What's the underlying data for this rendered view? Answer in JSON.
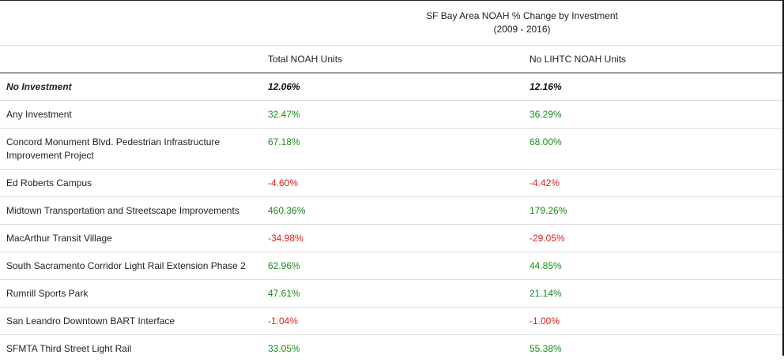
{
  "title_line1": "SF Bay Area NOAH % Change by Investment",
  "title_line2": "(2009 - 2016)",
  "columns": [
    "",
    "Total NOAH Units",
    "No LIHTC NOAH Units"
  ],
  "rows": [
    {
      "name": "No Investment",
      "total": "12.06%",
      "no_lihtc": "12.16%"
    },
    {
      "name": "Any Investment",
      "total": "32.47%",
      "no_lihtc": "36.29%"
    },
    {
      "name": "Concord Monument Blvd. Pedestrian Infrastructure Improvement Project",
      "total": "67.18%",
      "no_lihtc": "68.00%"
    },
    {
      "name": "Ed Roberts Campus",
      "total": "-4.60%",
      "no_lihtc": "-4.42%"
    },
    {
      "name": "Midtown Transportation and Streetscape Improvements",
      "total": "460.36%",
      "no_lihtc": "179.26%"
    },
    {
      "name": "MacArthur Transit Village",
      "total": "-34.98%",
      "no_lihtc": "-29.05%"
    },
    {
      "name": "South Sacramento Corridor Light Rail Extension Phase 2",
      "total": "62.96%",
      "no_lihtc": "44.85%"
    },
    {
      "name": "Rumrill Sports Park",
      "total": "47.61%",
      "no_lihtc": "21.14%"
    },
    {
      "name": "San Leandro Downtown BART Interface",
      "total": "-1.04%",
      "no_lihtc": "-1.00%"
    },
    {
      "name": "SFMTA Third Street Light Rail",
      "total": "33.05%",
      "no_lihtc": "55.38%"
    }
  ],
  "colors": {
    "positive": "#1a8a1a",
    "negative": "#e0201a",
    "baseline": "#111111"
  }
}
